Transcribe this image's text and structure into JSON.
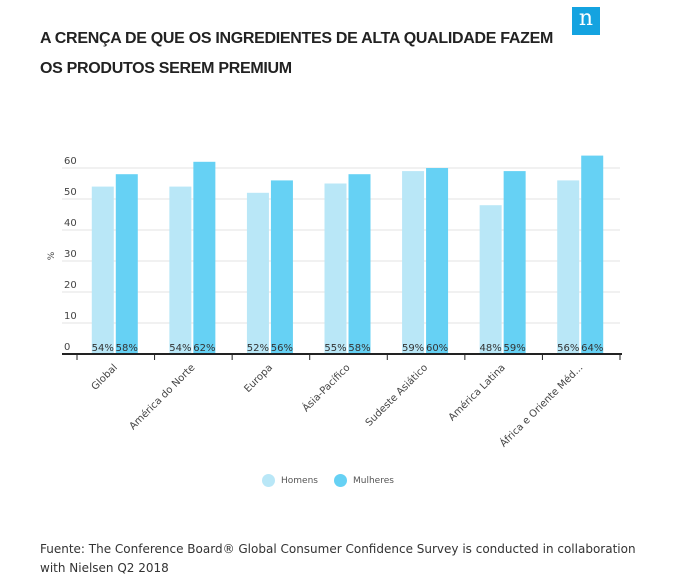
{
  "title": "A CRENÇA DE QUE OS INGREDIENTES DE ALTA QUALIDADE FAZEM OS PRODUTOS SEREM PREMIUM",
  "logo_text": "n",
  "source": "Fuente: The Conference Board® Global Consumer Confidence Survey is conducted in collaboration with Nielsen Q2 2018",
  "chart_data": {
    "type": "bar",
    "title": "",
    "ylabel": "%",
    "xlabel": "",
    "ylim": [
      0,
      65
    ],
    "yticks": [
      0,
      10,
      20,
      30,
      40,
      50,
      60
    ],
    "grid": true,
    "legend": "bottom",
    "categories": [
      "Global",
      "América do Norte",
      "Europa",
      "Ásia-Pacífico",
      "Sudeste Asiático",
      "América Latina",
      "África e Oriente Méd..."
    ],
    "series": [
      {
        "name": "Homens",
        "color": "#b9e7f7",
        "values": [
          54,
          54,
          52,
          55,
          59,
          48,
          56
        ],
        "labels": [
          "54%",
          "54%",
          "52%",
          "55%",
          "59%",
          "48%",
          "56%"
        ]
      },
      {
        "name": "Mulheres",
        "color": "#66d1f4",
        "values": [
          58,
          62,
          56,
          58,
          60,
          59,
          64
        ],
        "labels": [
          "58%",
          "62%",
          "56%",
          "58%",
          "60%",
          "59%",
          "64%"
        ]
      }
    ]
  }
}
